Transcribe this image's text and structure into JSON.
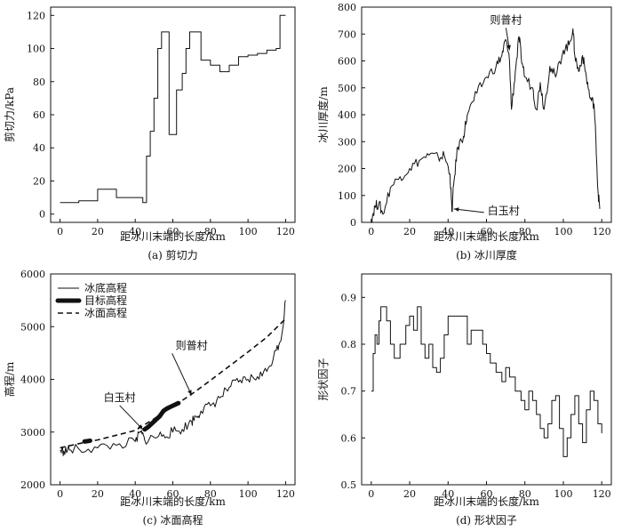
{
  "chart_data": [
    {
      "id": "a",
      "type": "line",
      "caption": "(a) 剪切力",
      "xlabel": "距冰川末端的长度/km",
      "ylabel": "剪切力/kPa",
      "xlim": [
        -5,
        125
      ],
      "ylim": [
        -5,
        125
      ],
      "xticks": [
        0,
        20,
        40,
        60,
        80,
        100,
        120
      ],
      "yticks": [
        0,
        20,
        40,
        60,
        80,
        100,
        120
      ],
      "series": [
        {
          "style": "step",
          "x": [
            0,
            10,
            20,
            30,
            44,
            46,
            48,
            50,
            52,
            54,
            58,
            62,
            65,
            67,
            69,
            75,
            80,
            85,
            90,
            95,
            100,
            105,
            110,
            115,
            117,
            120
          ],
          "y": [
            7,
            8,
            15,
            10,
            7,
            35,
            50,
            70,
            100,
            110,
            48,
            75,
            85,
            100,
            110,
            93,
            90,
            86,
            90,
            95,
            96,
            97,
            99,
            100,
            120,
            120
          ]
        }
      ]
    },
    {
      "id": "b",
      "type": "line",
      "caption": "(b) 冰川厚度",
      "xlabel": "距冰川末端的长度/km",
      "ylabel": "冰川厚度/m",
      "xlim": [
        -5,
        125
      ],
      "ylim": [
        0,
        800
      ],
      "xticks": [
        0,
        20,
        40,
        60,
        80,
        100,
        120
      ],
      "yticks": [
        0,
        100,
        200,
        300,
        400,
        500,
        600,
        700,
        800
      ],
      "annotations": [
        {
          "text": "则普村",
          "x": 72,
          "y": 640
        },
        {
          "text": "白玉村",
          "x": 43,
          "y": 50
        }
      ],
      "series": [
        {
          "style": "jagged",
          "x": [
            0,
            2,
            4,
            6,
            10,
            15,
            20,
            25,
            30,
            35,
            38,
            41,
            42,
            43,
            45,
            48,
            50,
            55,
            60,
            65,
            68,
            70,
            72,
            73,
            75,
            77,
            78,
            80,
            84,
            86,
            88,
            90,
            93,
            96,
            100,
            103,
            105,
            106,
            108,
            110,
            112,
            114,
            116,
            117,
            118,
            119
          ],
          "y": [
            10,
            60,
            70,
            30,
            130,
            170,
            200,
            230,
            250,
            240,
            250,
            180,
            40,
            150,
            280,
            320,
            400,
            480,
            540,
            580,
            620,
            680,
            600,
            420,
            560,
            690,
            620,
            540,
            500,
            420,
            520,
            420,
            580,
            540,
            640,
            660,
            720,
            620,
            560,
            620,
            540,
            460,
            440,
            300,
            120,
            50
          ]
        }
      ]
    },
    {
      "id": "c",
      "type": "line",
      "caption": "(c) 冰面高程",
      "xlabel": "距冰川末端的长度/km",
      "ylabel": "高程/m",
      "xlim": [
        -5,
        125
      ],
      "ylim": [
        2000,
        6000
      ],
      "xticks": [
        0,
        20,
        40,
        60,
        80,
        100,
        120
      ],
      "yticks": [
        2000,
        3000,
        4000,
        5000,
        6000
      ],
      "legend": {
        "position": "top-left",
        "entries": [
          "冰底高程",
          "目标高程",
          "冰面高程"
        ]
      },
      "annotations": [
        {
          "text": "白玉村",
          "x": 44,
          "y": 3050
        },
        {
          "text": "则普村",
          "x": 70,
          "y": 3700
        }
      ],
      "series": [
        {
          "name": "冰底高程",
          "style": "jagged",
          "x": [
            0,
            2,
            5,
            10,
            20,
            30,
            40,
            43,
            45,
            50,
            55,
            60,
            65,
            70,
            72,
            75,
            80,
            85,
            90,
            95,
            100,
            105,
            110,
            115,
            118,
            120
          ],
          "y": [
            2650,
            2640,
            2660,
            2680,
            2700,
            2750,
            2820,
            3000,
            2850,
            2900,
            2950,
            3000,
            3050,
            3200,
            3300,
            3400,
            3500,
            3650,
            3850,
            3950,
            4000,
            4050,
            4150,
            4550,
            4850,
            5500
          ]
        },
        {
          "name": "目标高程",
          "style": "thick",
          "x": [
            13,
            14,
            15,
            16,
            45,
            47,
            50,
            53,
            55,
            57,
            60,
            63
          ],
          "y": [
            2820,
            2825,
            2830,
            2835,
            3050,
            3100,
            3200,
            3300,
            3400,
            3450,
            3500,
            3550
          ]
        },
        {
          "name": "冰面高程",
          "style": "dashed",
          "x": [
            0,
            10,
            20,
            30,
            40,
            50,
            60,
            70,
            80,
            90,
            100,
            110,
            120
          ],
          "y": [
            2700,
            2780,
            2850,
            2940,
            3030,
            3250,
            3480,
            3720,
            3980,
            4250,
            4520,
            4800,
            5150
          ]
        }
      ]
    },
    {
      "id": "d",
      "type": "line",
      "caption": "(d) 形状因子",
      "xlabel": "距冰川末端的长度/km",
      "ylabel": "形状因子",
      "xlim": [
        -5,
        125
      ],
      "ylim": [
        0.5,
        0.95
      ],
      "xticks": [
        0,
        20,
        40,
        60,
        80,
        100,
        120
      ],
      "yticks": [
        0.5,
        0.6,
        0.7,
        0.8,
        0.9
      ],
      "yticklabels": [
        "0.5",
        "0.6",
        "0.7",
        "0.8",
        "0.9"
      ],
      "series": [
        {
          "style": "step",
          "x": [
            0,
            1,
            2,
            3,
            4,
            5,
            6,
            8,
            10,
            12,
            15,
            18,
            20,
            22,
            24,
            26,
            28,
            30,
            32,
            34,
            36,
            38,
            40,
            42,
            50,
            52,
            58,
            60,
            62,
            65,
            68,
            70,
            72,
            75,
            78,
            80,
            82,
            84,
            86,
            88,
            90,
            92,
            94,
            96,
            98,
            100,
            102,
            104,
            106,
            108,
            110,
            112,
            114,
            116,
            118,
            120
          ],
          "y": [
            0.7,
            0.78,
            0.82,
            0.8,
            0.85,
            0.88,
            0.88,
            0.85,
            0.8,
            0.77,
            0.8,
            0.84,
            0.86,
            0.83,
            0.88,
            0.8,
            0.77,
            0.8,
            0.75,
            0.74,
            0.77,
            0.82,
            0.86,
            0.86,
            0.8,
            0.83,
            0.8,
            0.78,
            0.76,
            0.74,
            0.72,
            0.75,
            0.73,
            0.7,
            0.68,
            0.66,
            0.7,
            0.68,
            0.65,
            0.62,
            0.6,
            0.63,
            0.68,
            0.69,
            0.62,
            0.56,
            0.6,
            0.65,
            0.69,
            0.63,
            0.59,
            0.66,
            0.7,
            0.68,
            0.63,
            0.61
          ]
        }
      ]
    }
  ]
}
